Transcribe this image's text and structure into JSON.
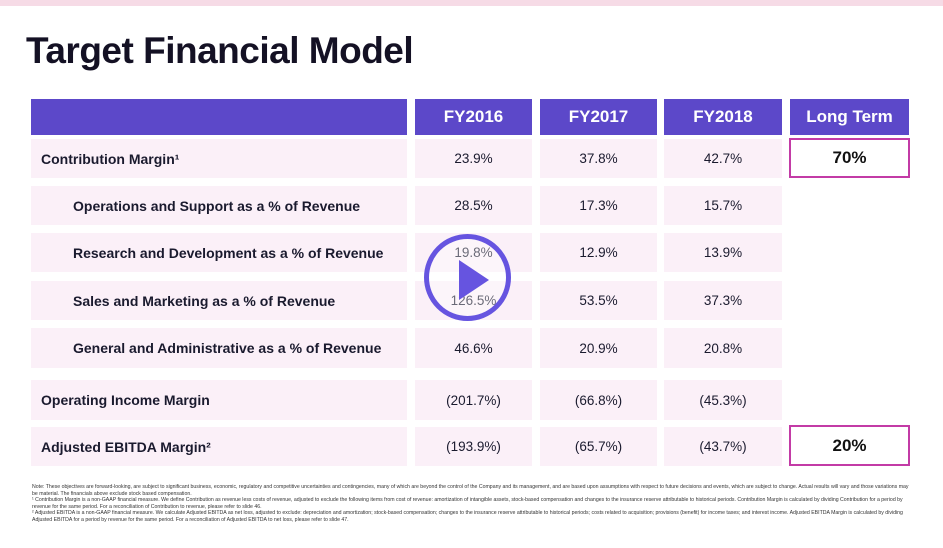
{
  "slide": {
    "title": "Target Financial Model"
  },
  "table": {
    "headers": [
      "",
      "FY2016",
      "FY2017",
      "FY2018",
      "Long Term"
    ],
    "rows": [
      {
        "label": "Contribution Margin¹",
        "values": [
          "23.9%",
          "37.8%",
          "42.7%"
        ],
        "long_term": "70%"
      },
      {
        "label": "Operations and Support as a % of Revenue",
        "values": [
          "28.5%",
          "17.3%",
          "15.7%"
        ],
        "long_term": ""
      },
      {
        "label": "Research and Development as a % of Revenue",
        "values": [
          "19.8%",
          "12.9%",
          "13.9%"
        ],
        "long_term": ""
      },
      {
        "label": "Sales and Marketing as a % of Revenue",
        "values": [
          "126.5%",
          "53.5%",
          "37.3%"
        ],
        "long_term": ""
      },
      {
        "label": "General and Administrative as a % of Revenue",
        "values": [
          "46.6%",
          "20.9%",
          "20.8%"
        ],
        "long_term": ""
      },
      {
        "label": "Operating Income Margin",
        "values": [
          "(201.7%)",
          "(66.8%)",
          "(45.3%)"
        ],
        "long_term": ""
      },
      {
        "label": "Adjusted EBITDA Margin²",
        "values": [
          "(193.9%)",
          "(65.7%)",
          "(43.7%)"
        ],
        "long_term": "20%"
      }
    ]
  },
  "footnotes": [
    "Note: These objectives are forward-looking, are subject to significant business, economic, regulatory and competitive uncertainties and contingencies, many of which are beyond the control of the Company and its management, and are based upon assumptions with respect to future decisions and events, which are subject to change. Actual results will vary and those variations may be material. The financials above exclude stock based compensation.",
    "¹ Contribution Margin is a non-GAAP financial measure. We define Contribution as revenue less costs of revenue, adjusted to exclude the following items from cost of revenue: amortization of intangible assets, stock-based compensation and changes to the insurance reserve attributable to historical periods. Contribution Margin is calculated by dividing Contribution for a period by revenue for the same period. For a reconciliation of Contribution to revenue, please refer to slide 46.",
    "² Adjusted EBITDA is a non-GAAP financial measure. We calculate Adjusted EBITDA as net loss, adjusted to exclude: depreciation and amortization; stock-based compensation; changes to the insurance reserve attributable to historical periods; costs related to acquisition; provisions (benefit) for income taxes; and interest income. Adjusted EBITDA Margin is calculated by dividing Adjusted EBITDA for a period by revenue for the same period. For a reconciliation of Adjusted EBITDA to net loss, please refer to slide 47."
  ],
  "player": {
    "icon": "play-icon",
    "accent": "#6654e0"
  },
  "colors": {
    "header_bg": "#5c48c9",
    "row_bg": "#fbf0f8",
    "highlight_border": "#c33ba6"
  }
}
